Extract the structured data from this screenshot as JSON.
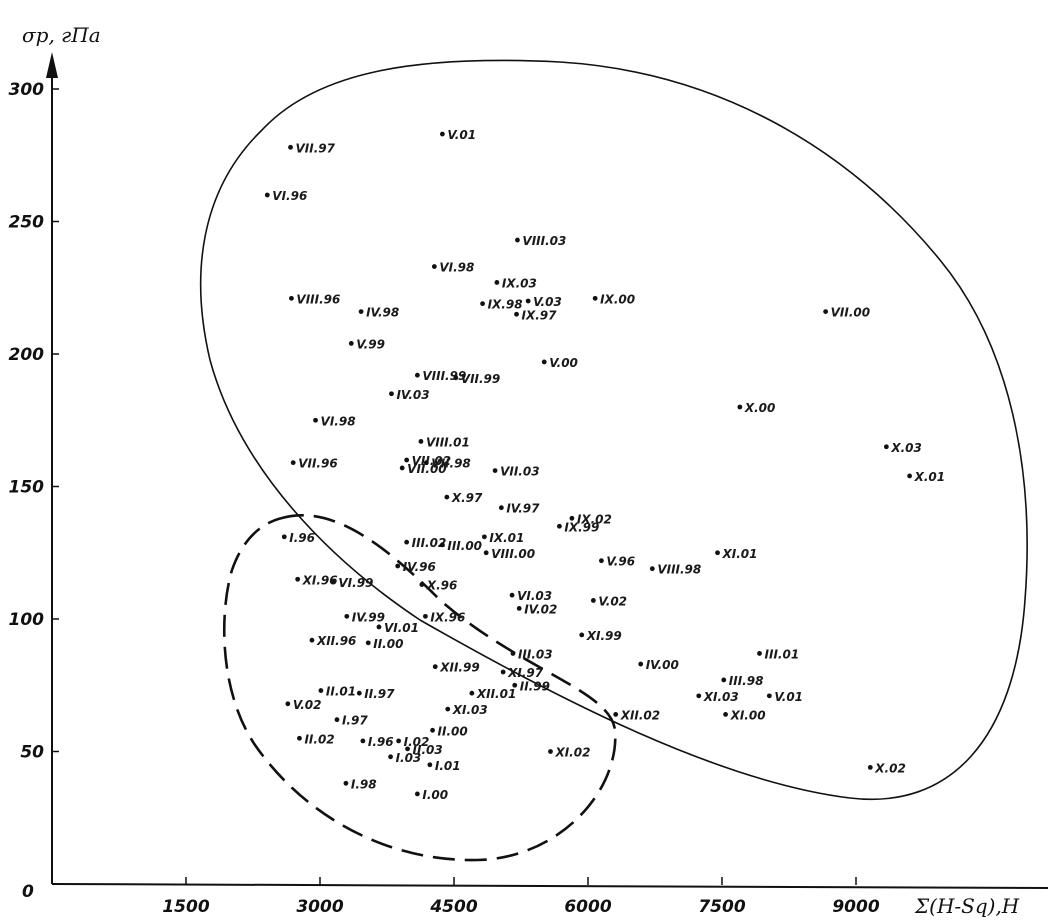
{
  "chart_data": {
    "type": "scatter",
    "ylabel": "σp, гПа",
    "xlabel": "Σ(H-Sq),H",
    "origin_label": "0",
    "xlim": [
      0,
      11000
    ],
    "ylim": [
      0,
      310
    ],
    "x_ticks": [
      {
        "value": 1500,
        "label": "1500"
      },
      {
        "value": 3000,
        "label": "3000"
      },
      {
        "value": 4500,
        "label": "4500"
      },
      {
        "value": 6000,
        "label": "6000"
      },
      {
        "value": 7500,
        "label": "7500"
      },
      {
        "value": 9000,
        "label": "9000"
      }
    ],
    "y_ticks": [
      {
        "value": 50,
        "label": "50"
      },
      {
        "value": 100,
        "label": "100"
      },
      {
        "value": 150,
        "label": "150"
      },
      {
        "value": 200,
        "label": "200"
      },
      {
        "value": 250,
        "label": "250"
      },
      {
        "value": 300,
        "label": "300"
      }
    ],
    "grid": false,
    "points": [
      {
        "label": "V.01",
        "x": 4370,
        "y": 283
      },
      {
        "label": "VII.97",
        "x": 2670,
        "y": 278
      },
      {
        "label": "VI.96",
        "x": 2410,
        "y": 260
      },
      {
        "label": "VIII.03",
        "x": 5210,
        "y": 243
      },
      {
        "label": "VI.98",
        "x": 4280,
        "y": 233
      },
      {
        "label": "IX.03",
        "x": 4980,
        "y": 227
      },
      {
        "label": "VIII.96",
        "x": 2680,
        "y": 221
      },
      {
        "label": "V.03",
        "x": 5330,
        "y": 220
      },
      {
        "label": "IX.00",
        "x": 6080,
        "y": 221
      },
      {
        "label": "IX.98",
        "x": 4820,
        "y": 219
      },
      {
        "label": "IV.98",
        "x": 3460,
        "y": 216
      },
      {
        "label": "IX.97",
        "x": 5200,
        "y": 215
      },
      {
        "label": "VII.00",
        "x": 8660,
        "y": 216
      },
      {
        "label": "V.99",
        "x": 3350,
        "y": 204
      },
      {
        "label": "V.00",
        "x": 5510,
        "y": 197
      },
      {
        "label": "VIII.99",
        "x": 4090,
        "y": 192
      },
      {
        "label": "VII.99",
        "x": 4520,
        "y": 191
      },
      {
        "label": "IV.03",
        "x": 3800,
        "y": 185
      },
      {
        "label": "X.00",
        "x": 7700,
        "y": 180
      },
      {
        "label": "VI.98",
        "x": 2950,
        "y": 175
      },
      {
        "label": "VIII.01",
        "x": 4130,
        "y": 167
      },
      {
        "label": "X.03",
        "x": 9340,
        "y": 165
      },
      {
        "label": "VII.02",
        "x": 3970,
        "y": 160
      },
      {
        "label": "VII.98",
        "x": 4190,
        "y": 159
      },
      {
        "label": "VII.96",
        "x": 2700,
        "y": 159
      },
      {
        "label": "VII.00",
        "x": 3920,
        "y": 157
      },
      {
        "label": "VII.03",
        "x": 4960,
        "y": 156
      },
      {
        "label": "X.01",
        "x": 9600,
        "y": 154
      },
      {
        "label": "X.97",
        "x": 4420,
        "y": 146
      },
      {
        "label": "IV.97",
        "x": 5030,
        "y": 142
      },
      {
        "label": "IX.02",
        "x": 5820,
        "y": 138
      },
      {
        "label": "IX.99",
        "x": 5680,
        "y": 135
      },
      {
        "label": "I.96",
        "x": 2600,
        "y": 131
      },
      {
        "label": "III.02",
        "x": 3970,
        "y": 129
      },
      {
        "label": "III.00",
        "x": 4370,
        "y": 128
      },
      {
        "label": "IX.01",
        "x": 4840,
        "y": 131
      },
      {
        "label": "VIII.00",
        "x": 4860,
        "y": 125
      },
      {
        "label": "IV.96",
        "x": 3870,
        "y": 120
      },
      {
        "label": "V.96",
        "x": 6150,
        "y": 122
      },
      {
        "label": "VIII.98",
        "x": 6720,
        "y": 119
      },
      {
        "label": "XI.01",
        "x": 7450,
        "y": 125
      },
      {
        "label": "VI.99",
        "x": 3150,
        "y": 114
      },
      {
        "label": "X.96",
        "x": 4140,
        "y": 113
      },
      {
        "label": "XI.96",
        "x": 2750,
        "y": 115
      },
      {
        "label": "VI.03",
        "x": 5150,
        "y": 109
      },
      {
        "label": "V.02",
        "x": 6060,
        "y": 107
      },
      {
        "label": "IV.02",
        "x": 5230,
        "y": 104
      },
      {
        "label": "IV.99",
        "x": 3300,
        "y": 101
      },
      {
        "label": "VI.01",
        "x": 3660,
        "y": 97
      },
      {
        "label": "IX.96",
        "x": 4180,
        "y": 101
      },
      {
        "label": "III.01",
        "x": 7920,
        "y": 87
      },
      {
        "label": "XI.99",
        "x": 5930,
        "y": 94
      },
      {
        "label": "XII.96",
        "x": 2910,
        "y": 92
      },
      {
        "label": "II.00",
        "x": 3540,
        "y": 91
      },
      {
        "label": "XII.99",
        "x": 4290,
        "y": 82
      },
      {
        "label": "III.03",
        "x": 5160,
        "y": 87
      },
      {
        "label": "IV.00",
        "x": 6590,
        "y": 83
      },
      {
        "label": "XI.97",
        "x": 5050,
        "y": 80
      },
      {
        "label": "III.98",
        "x": 7520,
        "y": 77
      },
      {
        "label": "II.99",
        "x": 5180,
        "y": 75
      },
      {
        "label": "II.01",
        "x": 3010,
        "y": 73
      },
      {
        "label": "II.97",
        "x": 3440,
        "y": 72
      },
      {
        "label": "XII.01",
        "x": 4700,
        "y": 72
      },
      {
        "label": "XI.03",
        "x": 7240,
        "y": 71
      },
      {
        "label": "V.01",
        "x": 8030,
        "y": 71
      },
      {
        "label": "V.02",
        "x": 2640,
        "y": 68
      },
      {
        "label": "XI.03",
        "x": 4430,
        "y": 66
      },
      {
        "label": "XII.02",
        "x": 6310,
        "y": 64
      },
      {
        "label": "XI.00",
        "x": 7540,
        "y": 64
      },
      {
        "label": "I.97",
        "x": 3190,
        "y": 62
      },
      {
        "label": "II.02",
        "x": 2770,
        "y": 55
      },
      {
        "label": "I.96",
        "x": 3480,
        "y": 54
      },
      {
        "label": "I.02",
        "x": 3880,
        "y": 54
      },
      {
        "label": "II.00",
        "x": 4260,
        "y": 58
      },
      {
        "label": "II.03",
        "x": 3980,
        "y": 51
      },
      {
        "label": "I.03",
        "x": 3790,
        "y": 48
      },
      {
        "label": "XI.02",
        "x": 5580,
        "y": 50
      },
      {
        "label": "I.01",
        "x": 4230,
        "y": 45
      },
      {
        "label": "X.02",
        "x": 9160,
        "y": 44
      },
      {
        "label": "I.98",
        "x": 3290,
        "y": 38
      },
      {
        "label": "I.00",
        "x": 4090,
        "y": 34
      }
    ]
  }
}
